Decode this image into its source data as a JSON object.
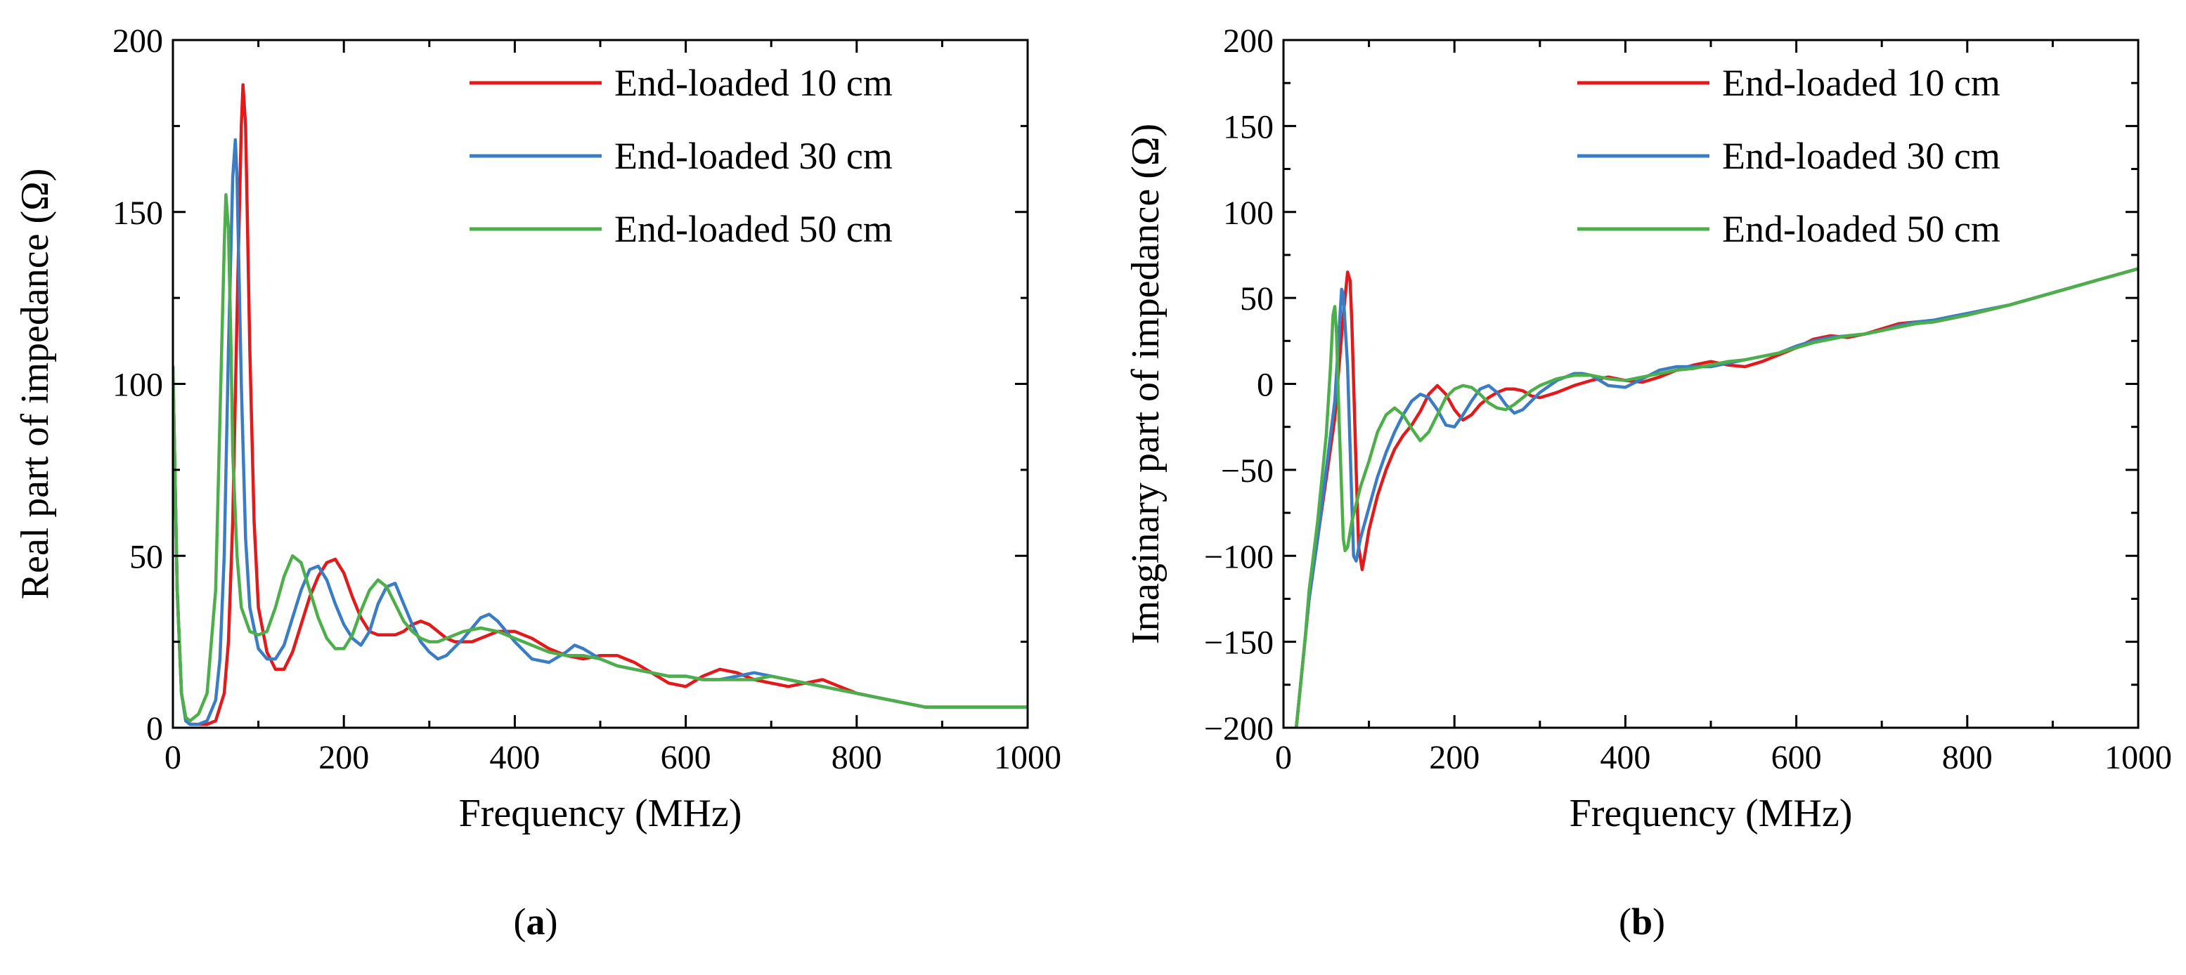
{
  "chart_data": [
    {
      "type": "line",
      "panel": "a",
      "caption": "(a)",
      "caption_parts": {
        "open": "(",
        "letter": "a",
        "close": ")"
      },
      "title": "",
      "xlabel": "Frequency (MHz)",
      "ylabel": "Real part of impedance (Ω)",
      "xlim": [
        0,
        1000
      ],
      "ylim": [
        0,
        200
      ],
      "xticks": [
        0,
        200,
        400,
        600,
        800,
        1000
      ],
      "yticks": [
        0,
        50,
        100,
        150,
        200
      ],
      "legend_position": "top-right",
      "grid": false,
      "series": [
        {
          "name": "End-loaded 10 cm",
          "color": "#e31a1c",
          "x": [
            0,
            5,
            10,
            15,
            20,
            30,
            40,
            50,
            60,
            65,
            70,
            75,
            80,
            82,
            85,
            90,
            95,
            100,
            110,
            120,
            130,
            140,
            150,
            160,
            170,
            180,
            190,
            200,
            210,
            220,
            230,
            240,
            250,
            260,
            270,
            280,
            290,
            300,
            310,
            320,
            330,
            340,
            350,
            360,
            370,
            380,
            390,
            400,
            420,
            440,
            460,
            480,
            500,
            520,
            540,
            560,
            580,
            600,
            620,
            640,
            660,
            680,
            700,
            720,
            740,
            760,
            780,
            800,
            820,
            840,
            860,
            880,
            900,
            920,
            940,
            960,
            980,
            1000
          ],
          "y": [
            105,
            40,
            10,
            3,
            1,
            1,
            1,
            2,
            10,
            25,
            60,
            120,
            175,
            187,
            175,
            110,
            60,
            35,
            22,
            17,
            17,
            22,
            30,
            38,
            44,
            48,
            49,
            45,
            38,
            32,
            28,
            27,
            27,
            27,
            28,
            30,
            31,
            30,
            28,
            26,
            25,
            25,
            25,
            26,
            27,
            28,
            28,
            28,
            26,
            23,
            21,
            20,
            21,
            21,
            19,
            16,
            13,
            12,
            15,
            17,
            16,
            14,
            13,
            12,
            13,
            14,
            12,
            10,
            9,
            8,
            7,
            6,
            6,
            6,
            6,
            6,
            6,
            6
          ]
        },
        {
          "name": "End-loaded 30 cm",
          "color": "#3a7dc4",
          "x": [
            0,
            5,
            10,
            15,
            20,
            30,
            40,
            50,
            55,
            60,
            65,
            70,
            73,
            75,
            80,
            85,
            90,
            100,
            110,
            120,
            130,
            140,
            150,
            160,
            170,
            180,
            190,
            200,
            210,
            220,
            230,
            240,
            250,
            260,
            270,
            280,
            290,
            300,
            310,
            320,
            340,
            360,
            370,
            380,
            400,
            420,
            440,
            460,
            470,
            480,
            500,
            520,
            540,
            560,
            580,
            600,
            620,
            640,
            660,
            680,
            700,
            720,
            740,
            760,
            780,
            800,
            820,
            840,
            860,
            880,
            900,
            920,
            940,
            960,
            980,
            1000
          ],
          "y": [
            105,
            40,
            10,
            2,
            1,
            1,
            2,
            8,
            20,
            50,
            110,
            160,
            171,
            160,
            100,
            55,
            35,
            23,
            20,
            20,
            24,
            32,
            40,
            46,
            47,
            43,
            36,
            30,
            26,
            24,
            28,
            36,
            41,
            42,
            36,
            30,
            25,
            22,
            20,
            21,
            26,
            32,
            33,
            31,
            25,
            20,
            19,
            22,
            24,
            23,
            20,
            18,
            17,
            16,
            15,
            15,
            14,
            14,
            15,
            16,
            15,
            14,
            13,
            12,
            11,
            10,
            9,
            8,
            7,
            6,
            6,
            6,
            6,
            6,
            6,
            6
          ]
        },
        {
          "name": "End-loaded 50 cm",
          "color": "#4daf4a",
          "x": [
            0,
            5,
            10,
            15,
            20,
            30,
            40,
            50,
            55,
            60,
            62,
            65,
            68,
            70,
            75,
            80,
            90,
            100,
            110,
            120,
            130,
            140,
            150,
            160,
            170,
            180,
            190,
            200,
            210,
            220,
            230,
            240,
            250,
            260,
            270,
            280,
            290,
            300,
            310,
            320,
            340,
            360,
            380,
            400,
            420,
            440,
            460,
            480,
            500,
            520,
            540,
            560,
            580,
            600,
            620,
            640,
            660,
            680,
            700,
            720,
            740,
            760,
            780,
            800,
            820,
            840,
            860,
            880,
            900,
            920,
            940,
            960,
            980,
            1000
          ],
          "y": [
            105,
            40,
            10,
            3,
            2,
            4,
            10,
            40,
            90,
            140,
            155,
            145,
            110,
            80,
            50,
            35,
            28,
            27,
            28,
            35,
            44,
            50,
            48,
            40,
            32,
            26,
            23,
            23,
            27,
            34,
            40,
            43,
            41,
            36,
            31,
            28,
            26,
            25,
            25,
            26,
            28,
            29,
            28,
            26,
            24,
            22,
            21,
            21,
            20,
            18,
            17,
            16,
            15,
            15,
            14,
            14,
            14,
            14,
            15,
            14,
            13,
            12,
            11,
            10,
            9,
            8,
            7,
            6,
            6,
            6,
            6,
            6,
            6,
            6
          ]
        }
      ]
    },
    {
      "type": "line",
      "panel": "b",
      "caption": "(b)",
      "caption_parts": {
        "open": "(",
        "letter": "b",
        "close": ")"
      },
      "title": "",
      "xlabel": "Frequency (MHz)",
      "ylabel": "Imaginary part of impedance (Ω)",
      "xlim": [
        0,
        1000
      ],
      "ylim": [
        -200,
        200
      ],
      "xticks": [
        0,
        200,
        400,
        600,
        800,
        1000
      ],
      "yticks": [
        -200,
        -150,
        -100,
        -50,
        0,
        50,
        100,
        150,
        200
      ],
      "ytick_labels": [
        "−200",
        "−150",
        "−100",
        "−50",
        "0",
        "50",
        "100",
        "150",
        "200"
      ],
      "legend_position": "top-right",
      "grid": false,
      "series": [
        {
          "name": "End-loaded 10 cm",
          "color": "#e31a1c",
          "x": [
            15,
            20,
            25,
            30,
            40,
            50,
            60,
            65,
            70,
            75,
            78,
            80,
            85,
            88,
            92,
            95,
            100,
            110,
            120,
            130,
            140,
            150,
            160,
            170,
            180,
            190,
            200,
            210,
            220,
            230,
            240,
            250,
            260,
            270,
            280,
            290,
            300,
            320,
            340,
            360,
            380,
            400,
            420,
            440,
            460,
            480,
            500,
            520,
            540,
            560,
            580,
            600,
            620,
            640,
            660,
            680,
            700,
            720,
            740,
            760,
            780,
            800,
            850,
            900,
            950,
            1000
          ],
          "y": [
            -200,
            -175,
            -150,
            -125,
            -90,
            -55,
            -20,
            10,
            40,
            65,
            60,
            35,
            -50,
            -95,
            -108,
            -100,
            -85,
            -65,
            -50,
            -38,
            -30,
            -24,
            -16,
            -6,
            -1,
            -6,
            -15,
            -21,
            -18,
            -12,
            -8,
            -5,
            -3,
            -3,
            -4,
            -7,
            -8,
            -5,
            -1,
            2,
            4,
            2,
            1,
            4,
            8,
            11,
            13,
            11,
            10,
            13,
            17,
            21,
            26,
            28,
            27,
            29,
            32,
            35,
            36,
            36,
            38,
            40,
            46,
            53,
            60,
            67
          ]
        },
        {
          "name": "End-loaded 30 cm",
          "color": "#3a7dc4",
          "x": [
            15,
            20,
            25,
            30,
            40,
            50,
            60,
            65,
            68,
            70,
            75,
            80,
            82,
            85,
            90,
            100,
            110,
            120,
            130,
            140,
            150,
            160,
            170,
            180,
            190,
            200,
            210,
            220,
            230,
            240,
            250,
            260,
            270,
            280,
            290,
            300,
            320,
            340,
            350,
            360,
            380,
            400,
            420,
            440,
            460,
            480,
            500,
            520,
            540,
            560,
            580,
            600,
            620,
            640,
            660,
            680,
            700,
            720,
            740,
            760,
            780,
            800,
            850,
            900,
            950,
            1000
          ],
          "y": [
            -200,
            -175,
            -150,
            -125,
            -90,
            -50,
            -10,
            30,
            55,
            52,
            10,
            -70,
            -100,
            -103,
            -90,
            -72,
            -54,
            -40,
            -28,
            -18,
            -10,
            -6,
            -8,
            -15,
            -24,
            -25,
            -18,
            -10,
            -3,
            -1,
            -5,
            -12,
            -17,
            -15,
            -10,
            -5,
            2,
            6,
            6,
            5,
            -1,
            -2,
            3,
            8,
            10,
            10,
            10,
            12,
            14,
            16,
            18,
            22,
            25,
            27,
            28,
            29,
            31,
            34,
            36,
            37,
            39,
            41,
            46,
            53,
            60,
            67
          ]
        },
        {
          "name": "End-loaded 50 cm",
          "color": "#4daf4a",
          "x": [
            15,
            20,
            25,
            30,
            40,
            50,
            55,
            58,
            60,
            62,
            65,
            70,
            72,
            75,
            80,
            90,
            100,
            110,
            120,
            130,
            140,
            150,
            160,
            170,
            180,
            190,
            200,
            210,
            220,
            230,
            240,
            250,
            260,
            270,
            280,
            290,
            300,
            320,
            340,
            360,
            380,
            400,
            420,
            440,
            460,
            480,
            500,
            520,
            540,
            560,
            580,
            600,
            620,
            640,
            660,
            680,
            700,
            720,
            740,
            760,
            780,
            800,
            850,
            900,
            950,
            1000
          ],
          "y": [
            -200,
            -175,
            -150,
            -120,
            -80,
            -30,
            10,
            40,
            45,
            30,
            -20,
            -90,
            -97,
            -95,
            -80,
            -60,
            -45,
            -28,
            -18,
            -14,
            -18,
            -26,
            -33,
            -28,
            -18,
            -8,
            -3,
            -1,
            -2,
            -6,
            -11,
            -14,
            -15,
            -12,
            -8,
            -4,
            -1,
            3,
            5,
            5,
            3,
            2,
            4,
            6,
            8,
            9,
            11,
            13,
            14,
            16,
            18,
            21,
            24,
            26,
            28,
            29,
            31,
            33,
            35,
            36,
            38,
            40,
            46,
            53,
            60,
            67
          ]
        }
      ]
    }
  ]
}
